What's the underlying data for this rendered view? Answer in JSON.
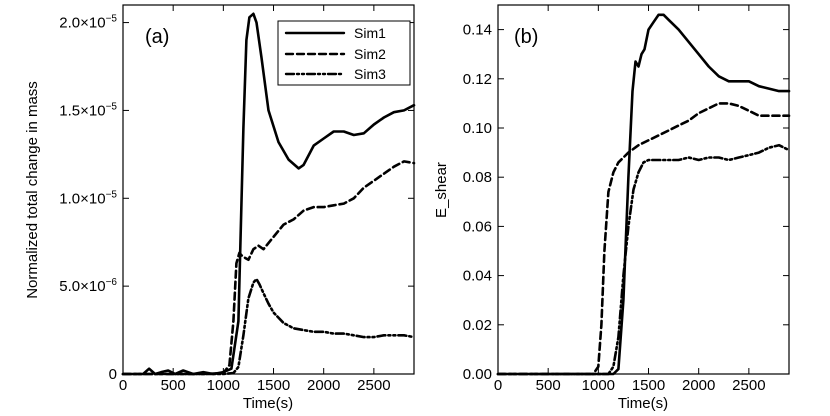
{
  "chart_data": [
    {
      "type": "line",
      "panel_label": "(a)",
      "xlabel": "Time(s)",
      "ylabel": "Normalized total change in mass",
      "xlim": [
        0,
        2900
      ],
      "ylim": [
        0,
        2.1e-05
      ],
      "xticks": [
        0,
        500,
        1000,
        1500,
        2000,
        2500
      ],
      "yticks": [
        {
          "value": 0,
          "mant": "0",
          "exp": ""
        },
        {
          "value": 5e-06,
          "mant": "5.0×10",
          "exp": "−6"
        },
        {
          "value": 1e-05,
          "mant": "1.0×10",
          "exp": "−5"
        },
        {
          "value": 1.5e-05,
          "mant": "1.5×10",
          "exp": "−5"
        },
        {
          "value": 2e-05,
          "mant": "2.0×10",
          "exp": "−5"
        }
      ],
      "legend": {
        "position": "top-right",
        "entries": [
          "Sim1",
          "Sim2",
          "Sim3"
        ]
      },
      "series": [
        {
          "name": "Sim1",
          "style": "solid",
          "x": [
            0,
            200,
            260,
            320,
            380,
            450,
            520,
            600,
            700,
            800,
            900,
            1000,
            1080,
            1150,
            1200,
            1230,
            1260,
            1300,
            1330,
            1380,
            1450,
            1550,
            1650,
            1750,
            1800,
            1900,
            2000,
            2100,
            2200,
            2300,
            2400,
            2500,
            2600,
            2700,
            2800,
            2900
          ],
          "y": [
            0,
            0,
            3e-07,
            0,
            1e-07,
            2e-07,
            0,
            2e-07,
            0,
            1e-07,
            0,
            1e-07,
            3e-07,
            3e-06,
            1.4e-05,
            1.9e-05,
            2.03e-05,
            2.05e-05,
            2e-05,
            1.8e-05,
            1.5e-05,
            1.32e-05,
            1.22e-05,
            1.17e-05,
            1.19e-05,
            1.3e-05,
            1.34e-05,
            1.38e-05,
            1.38e-05,
            1.36e-05,
            1.37e-05,
            1.42e-05,
            1.46e-05,
            1.49e-05,
            1.5e-05,
            1.53e-05
          ]
        },
        {
          "name": "Sim2",
          "style": "dashed",
          "x": [
            0,
            800,
            1000,
            1060,
            1100,
            1130,
            1160,
            1190,
            1250,
            1300,
            1350,
            1400,
            1500,
            1600,
            1700,
            1800,
            1900,
            2000,
            2100,
            2200,
            2300,
            2400,
            2500,
            2600,
            2700,
            2800,
            2900
          ],
          "y": [
            0,
            0,
            5e-08,
            5e-07,
            3e-06,
            6.3e-06,
            6.9e-06,
            6.7e-06,
            6.5e-06,
            7.1e-06,
            7.3e-06,
            7.1e-06,
            7.8e-06,
            8.5e-06,
            8.8e-06,
            9.3e-06,
            9.5e-06,
            9.5e-06,
            9.6e-06,
            9.7e-06,
            1e-05,
            1.06e-05,
            1.1e-05,
            1.14e-05,
            1.18e-05,
            1.21e-05,
            1.2e-05
          ]
        },
        {
          "name": "Sim3",
          "style": "dashdot",
          "x": [
            0,
            1000,
            1100,
            1150,
            1200,
            1250,
            1300,
            1330,
            1360,
            1400,
            1450,
            1500,
            1600,
            1700,
            1800,
            1900,
            2000,
            2100,
            2200,
            2300,
            2400,
            2500,
            2600,
            2700,
            2800,
            2900
          ],
          "y": [
            0,
            0,
            5e-08,
            4e-07,
            2.2e-06,
            4.3e-06,
            5.2e-06,
            5.4e-06,
            5.1e-06,
            4.6e-06,
            4e-06,
            3.5e-06,
            2.9e-06,
            2.6e-06,
            2.5e-06,
            2.4e-06,
            2.4e-06,
            2.3e-06,
            2.3e-06,
            2.2e-06,
            2.1e-06,
            2.1e-06,
            2.2e-06,
            2.2e-06,
            2.2e-06,
            2.1e-06
          ]
        }
      ]
    },
    {
      "type": "line",
      "panel_label": "(b)",
      "xlabel": "Time(s)",
      "ylabel": "E_shear",
      "xlim": [
        0,
        2900
      ],
      "ylim": [
        0,
        0.15
      ],
      "xticks": [
        0,
        500,
        1000,
        1500,
        2000,
        2500
      ],
      "yticks": [
        {
          "value": 0,
          "mant": "0.00",
          "exp": ""
        },
        {
          "value": 0.02,
          "mant": "0.02",
          "exp": ""
        },
        {
          "value": 0.04,
          "mant": "0.04",
          "exp": ""
        },
        {
          "value": 0.06,
          "mant": "0.06",
          "exp": ""
        },
        {
          "value": 0.08,
          "mant": "0.08",
          "exp": ""
        },
        {
          "value": 0.1,
          "mant": "0.10",
          "exp": ""
        },
        {
          "value": 0.12,
          "mant": "0.12",
          "exp": ""
        },
        {
          "value": 0.14,
          "mant": "0.14",
          "exp": ""
        }
      ],
      "series": [
        {
          "name": "Sim1",
          "style": "solid",
          "x": [
            0,
            1150,
            1200,
            1250,
            1300,
            1340,
            1370,
            1400,
            1430,
            1460,
            1500,
            1550,
            1600,
            1650,
            1700,
            1800,
            1900,
            2000,
            2100,
            2200,
            2300,
            2400,
            2500,
            2600,
            2700,
            2800,
            2900
          ],
          "y": [
            0,
            0,
            0.002,
            0.03,
            0.08,
            0.115,
            0.127,
            0.125,
            0.13,
            0.132,
            0.14,
            0.143,
            0.146,
            0.146,
            0.144,
            0.14,
            0.135,
            0.13,
            0.125,
            0.121,
            0.119,
            0.119,
            0.119,
            0.117,
            0.116,
            0.115,
            0.115
          ]
        },
        {
          "name": "Sim2",
          "style": "dashed",
          "x": [
            0,
            950,
            1000,
            1030,
            1060,
            1100,
            1150,
            1200,
            1300,
            1400,
            1500,
            1600,
            1700,
            1800,
            1900,
            2000,
            2100,
            2200,
            2300,
            2400,
            2500,
            2600,
            2700,
            2800,
            2900
          ],
          "y": [
            0,
            0,
            0.003,
            0.02,
            0.05,
            0.074,
            0.082,
            0.086,
            0.09,
            0.093,
            0.095,
            0.097,
            0.099,
            0.101,
            0.103,
            0.106,
            0.108,
            0.11,
            0.11,
            0.109,
            0.107,
            0.105,
            0.105,
            0.105,
            0.105
          ]
        },
        {
          "name": "Sim3",
          "style": "dashdot",
          "x": [
            0,
            1100,
            1150,
            1200,
            1250,
            1300,
            1350,
            1400,
            1450,
            1500,
            1600,
            1700,
            1800,
            1900,
            2000,
            2100,
            2200,
            2300,
            2400,
            2500,
            2600,
            2700,
            2800,
            2900
          ],
          "y": [
            0,
            0,
            0.003,
            0.015,
            0.04,
            0.06,
            0.075,
            0.082,
            0.086,
            0.087,
            0.087,
            0.087,
            0.087,
            0.088,
            0.087,
            0.088,
            0.088,
            0.087,
            0.088,
            0.089,
            0.09,
            0.092,
            0.093,
            0.091
          ]
        }
      ]
    }
  ]
}
